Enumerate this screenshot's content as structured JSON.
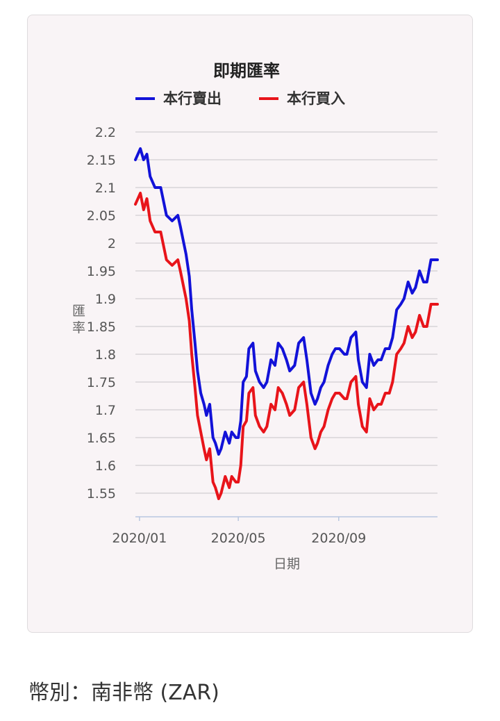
{
  "chart_data": {
    "type": "line",
    "title": "即期匯率",
    "xlabel": "日期",
    "ylabel": "匯率",
    "ylim": [
      1.5,
      2.2
    ],
    "y_ticks": [
      2.2,
      2.15,
      2.1,
      2.05,
      2,
      1.95,
      1.9,
      1.85,
      1.8,
      1.75,
      1.7,
      1.65,
      1.6,
      1.55
    ],
    "y_tick_labels": [
      "2.2",
      "2.15",
      "2.1",
      "2.05",
      "2",
      "1.95",
      "1.9",
      "1.85",
      "1.8",
      "1.75",
      "1.7",
      "1.65",
      "1.6",
      "1.55"
    ],
    "x_ticks": [
      "2020-01-01",
      "2020-05-01",
      "2020-09-01"
    ],
    "x_tick_labels": [
      "2020/01",
      "2020/05",
      "2020/09"
    ],
    "xlim": [
      "2019-12-27",
      "2020-12-31"
    ],
    "grid": true,
    "legend_position": "top",
    "series": [
      {
        "name": "本行賣出",
        "color": "#1212d8",
        "x": [
          "2019-12-27",
          "2020-01-02",
          "2020-01-06",
          "2020-01-10",
          "2020-01-14",
          "2020-01-20",
          "2020-01-27",
          "2020-02-03",
          "2020-02-10",
          "2020-02-17",
          "2020-02-20",
          "2020-02-27",
          "2020-03-02",
          "2020-03-05",
          "2020-03-09",
          "2020-03-12",
          "2020-03-16",
          "2020-03-20",
          "2020-03-23",
          "2020-03-27",
          "2020-03-31",
          "2020-04-03",
          "2020-04-07",
          "2020-04-10",
          "2020-04-15",
          "2020-04-20",
          "2020-04-23",
          "2020-04-28",
          "2020-05-01",
          "2020-05-04",
          "2020-05-07",
          "2020-05-11",
          "2020-05-14",
          "2020-05-19",
          "2020-05-22",
          "2020-05-27",
          "2020-06-01",
          "2020-06-05",
          "2020-06-10",
          "2020-06-15",
          "2020-06-19",
          "2020-06-24",
          "2020-06-29",
          "2020-07-03",
          "2020-07-09",
          "2020-07-14",
          "2020-07-20",
          "2020-07-24",
          "2020-07-29",
          "2020-08-03",
          "2020-08-06",
          "2020-08-10",
          "2020-08-14",
          "2020-08-19",
          "2020-08-24",
          "2020-08-28",
          "2020-09-02",
          "2020-09-08",
          "2020-09-11",
          "2020-09-16",
          "2020-09-22",
          "2020-09-25",
          "2020-09-30",
          "2020-10-05",
          "2020-10-09",
          "2020-10-14",
          "2020-10-19",
          "2020-10-23",
          "2020-10-28",
          "2020-11-02",
          "2020-11-06",
          "2020-11-11",
          "2020-11-16",
          "2020-11-20",
          "2020-11-25",
          "2020-11-30",
          "2020-12-04",
          "2020-12-09",
          "2020-12-14",
          "2020-12-18",
          "2020-12-23",
          "2020-12-31"
        ],
        "values": [
          2.15,
          2.17,
          2.15,
          2.16,
          2.12,
          2.1,
          2.1,
          2.05,
          2.04,
          2.05,
          2.03,
          1.98,
          1.94,
          1.88,
          1.82,
          1.77,
          1.73,
          1.71,
          1.69,
          1.71,
          1.65,
          1.64,
          1.62,
          1.63,
          1.66,
          1.64,
          1.66,
          1.65,
          1.65,
          1.68,
          1.75,
          1.76,
          1.81,
          1.82,
          1.77,
          1.75,
          1.74,
          1.75,
          1.79,
          1.78,
          1.82,
          1.81,
          1.79,
          1.77,
          1.78,
          1.82,
          1.83,
          1.79,
          1.73,
          1.71,
          1.72,
          1.74,
          1.75,
          1.78,
          1.8,
          1.81,
          1.81,
          1.8,
          1.8,
          1.83,
          1.84,
          1.79,
          1.75,
          1.74,
          1.8,
          1.78,
          1.79,
          1.79,
          1.81,
          1.81,
          1.83,
          1.88,
          1.89,
          1.9,
          1.93,
          1.91,
          1.92,
          1.95,
          1.93,
          1.93,
          1.97,
          1.97
        ]
      },
      {
        "name": "本行買入",
        "color": "#e8141a",
        "x": [
          "2019-12-27",
          "2020-01-02",
          "2020-01-06",
          "2020-01-10",
          "2020-01-14",
          "2020-01-20",
          "2020-01-27",
          "2020-02-03",
          "2020-02-10",
          "2020-02-17",
          "2020-02-20",
          "2020-02-27",
          "2020-03-02",
          "2020-03-05",
          "2020-03-09",
          "2020-03-12",
          "2020-03-16",
          "2020-03-20",
          "2020-03-23",
          "2020-03-27",
          "2020-03-31",
          "2020-04-03",
          "2020-04-07",
          "2020-04-10",
          "2020-04-15",
          "2020-04-20",
          "2020-04-23",
          "2020-04-28",
          "2020-05-01",
          "2020-05-04",
          "2020-05-07",
          "2020-05-11",
          "2020-05-14",
          "2020-05-19",
          "2020-05-22",
          "2020-05-27",
          "2020-06-01",
          "2020-06-05",
          "2020-06-10",
          "2020-06-15",
          "2020-06-19",
          "2020-06-24",
          "2020-06-29",
          "2020-07-03",
          "2020-07-09",
          "2020-07-14",
          "2020-07-20",
          "2020-07-24",
          "2020-07-29",
          "2020-08-03",
          "2020-08-06",
          "2020-08-10",
          "2020-08-14",
          "2020-08-19",
          "2020-08-24",
          "2020-08-28",
          "2020-09-02",
          "2020-09-08",
          "2020-09-11",
          "2020-09-16",
          "2020-09-22",
          "2020-09-25",
          "2020-09-30",
          "2020-10-05",
          "2020-10-09",
          "2020-10-14",
          "2020-10-19",
          "2020-10-23",
          "2020-10-28",
          "2020-11-02",
          "2020-11-06",
          "2020-11-11",
          "2020-11-16",
          "2020-11-20",
          "2020-11-25",
          "2020-11-30",
          "2020-12-04",
          "2020-12-09",
          "2020-12-14",
          "2020-12-18",
          "2020-12-23",
          "2020-12-31"
        ],
        "values": [
          2.07,
          2.09,
          2.06,
          2.08,
          2.04,
          2.02,
          2.02,
          1.97,
          1.96,
          1.97,
          1.95,
          1.9,
          1.86,
          1.8,
          1.74,
          1.69,
          1.66,
          1.63,
          1.61,
          1.63,
          1.57,
          1.56,
          1.54,
          1.55,
          1.58,
          1.56,
          1.58,
          1.57,
          1.57,
          1.6,
          1.67,
          1.68,
          1.73,
          1.74,
          1.69,
          1.67,
          1.66,
          1.67,
          1.71,
          1.7,
          1.74,
          1.73,
          1.71,
          1.69,
          1.7,
          1.74,
          1.75,
          1.71,
          1.65,
          1.63,
          1.64,
          1.66,
          1.67,
          1.7,
          1.72,
          1.73,
          1.73,
          1.72,
          1.72,
          1.75,
          1.76,
          1.71,
          1.67,
          1.66,
          1.72,
          1.7,
          1.71,
          1.71,
          1.73,
          1.73,
          1.75,
          1.8,
          1.81,
          1.82,
          1.85,
          1.83,
          1.84,
          1.87,
          1.85,
          1.85,
          1.89,
          1.89
        ]
      }
    ]
  },
  "footer": {
    "currency_label": "幣別：南非幣 (ZAR)"
  }
}
